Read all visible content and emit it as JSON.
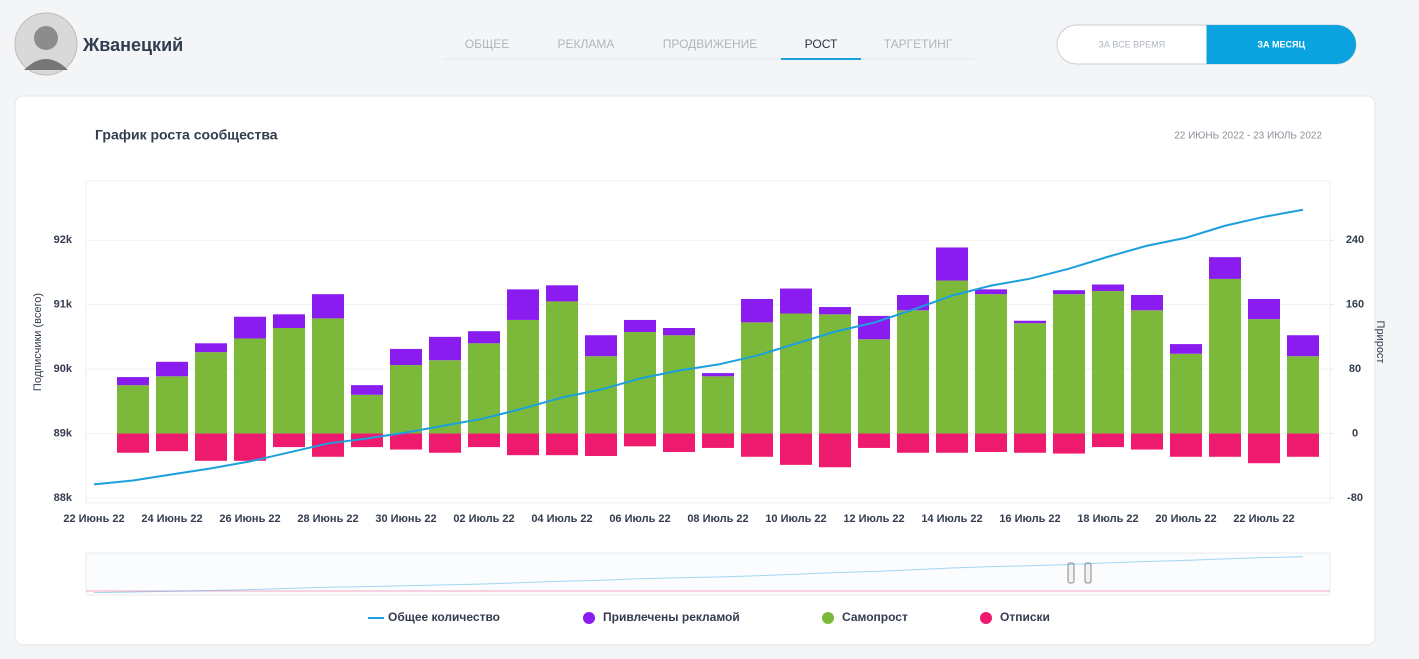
{
  "header": {
    "name": "Жванецкий",
    "tabs": [
      "ОБЩЕЕ",
      "РЕКЛАМА",
      "ПРОДВИЖЕНИЕ",
      "РОСТ",
      "ТАРГЕТИНГ"
    ],
    "active_tab": 3,
    "period_toggle": [
      "ЗА ВСЕ ВРЕМЯ",
      "ЗА МЕСЯЦ"
    ],
    "active_period": 1
  },
  "chart_data": {
    "type": "bar",
    "title": "График роста сообщества",
    "subtitle": "22 ИЮНЬ 2022 - 23 ИЮЛЬ 2022",
    "ylabel": "Подписчики (всего)",
    "y2label": "Прирост",
    "categories": [
      "22 Июнь 22",
      null,
      "24 Июнь 22",
      null,
      "26 Июнь 22",
      null,
      "28 Июнь 22",
      null,
      "30 Июнь 22",
      null,
      "02 Июль 22",
      null,
      "04 Июль 22",
      null,
      "06 Июль 22",
      null,
      "08 Июль 22",
      null,
      "10 Июль 22",
      null,
      "12 Июль 22",
      null,
      "14 Июль 22",
      null,
      "16 Июль 22",
      null,
      "18 Июль 22",
      null,
      "20 Июль 22",
      null,
      "22 Июль 22",
      null
    ],
    "series": [
      {
        "name": "Общее количество",
        "type": "line",
        "color": "#1ba0dc",
        "values": [
          88210,
          88270,
          88365,
          88457,
          88566,
          88705,
          88845,
          88922,
          89015,
          89124,
          89233,
          89388,
          89558,
          89682,
          89853,
          89977,
          90070,
          90209,
          90395,
          90581,
          90721,
          90922,
          91140,
          91295,
          91403,
          91558,
          91744,
          91915,
          92039,
          92225,
          92364,
          92473
        ]
      },
      {
        "name": "Привлечены рекламой",
        "type": "bar",
        "axis": "y2",
        "color": "#8a1cf0",
        "values": [
          null,
          10,
          18,
          11,
          27,
          17,
          30,
          12,
          20,
          29,
          15,
          38,
          20,
          26,
          15,
          9,
          4,
          29,
          31,
          9,
          29,
          19,
          41,
          6,
          3,
          5,
          8,
          19,
          12,
          27,
          25,
          26
        ]
      },
      {
        "name": "Самопрост",
        "type": "bar",
        "axis": "y2",
        "color": "#7cb93a",
        "values": [
          null,
          60,
          71,
          101,
          118,
          131,
          143,
          48,
          85,
          91,
          112,
          141,
          164,
          96,
          126,
          122,
          71,
          138,
          149,
          148,
          117,
          153,
          190,
          173,
          137,
          173,
          177,
          153,
          99,
          192,
          142,
          96
        ]
      },
      {
        "name": "Отписки",
        "type": "bar",
        "axis": "y2",
        "color": "#ed1a6e",
        "values": [
          null,
          -24,
          -22,
          -34,
          -34,
          -17,
          -29,
          -17,
          -20,
          -24,
          -17,
          -27,
          -27,
          -28,
          -16,
          -23,
          -18,
          -29,
          -39,
          -42,
          -18,
          -24,
          -24,
          -23,
          -24,
          -25,
          -17,
          -20,
          -29,
          -29,
          -37,
          -29
        ]
      }
    ],
    "ylim": [
      87920,
      92920
    ],
    "yticks": [
      {
        "value": 88000,
        "label": "88k"
      },
      {
        "value": 89000,
        "label": "89k"
      },
      {
        "value": 90000,
        "label": "90k"
      },
      {
        "value": 91000,
        "label": "91k"
      },
      {
        "value": 92000,
        "label": "92k"
      }
    ],
    "y2lim": [
      -86.4,
      313.6
    ],
    "y2ticks": [
      -80,
      0,
      80,
      160,
      240
    ],
    "grid": true,
    "legend": "bottom"
  }
}
